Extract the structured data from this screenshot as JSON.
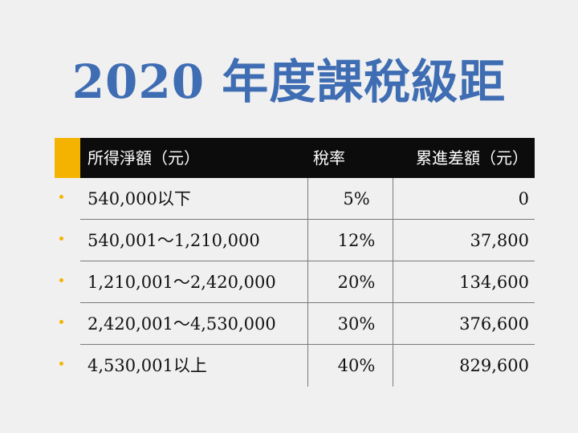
{
  "title": "2020 年度課稅級距",
  "colors": {
    "title": "#3f6db3",
    "accent": "#f5b301",
    "header_bg": "#0c0c0c",
    "background": "#f0f0f0"
  },
  "table": {
    "headers": [
      "所得淨額（元）",
      "稅率",
      "累進差額（元）"
    ],
    "rows": [
      {
        "income": "540,000以下",
        "rate": "5%",
        "deduction": "0"
      },
      {
        "income": "540,001～1,210,000",
        "rate": "12%",
        "deduction": "37,800"
      },
      {
        "income": "1,210,001～2,420,000",
        "rate": "20%",
        "deduction": "134,600"
      },
      {
        "income": "2,420,001～4,530,000",
        "rate": "30%",
        "deduction": "376,600"
      },
      {
        "income": "4,530,001以上",
        "rate": "40%",
        "deduction": "829,600"
      }
    ]
  }
}
